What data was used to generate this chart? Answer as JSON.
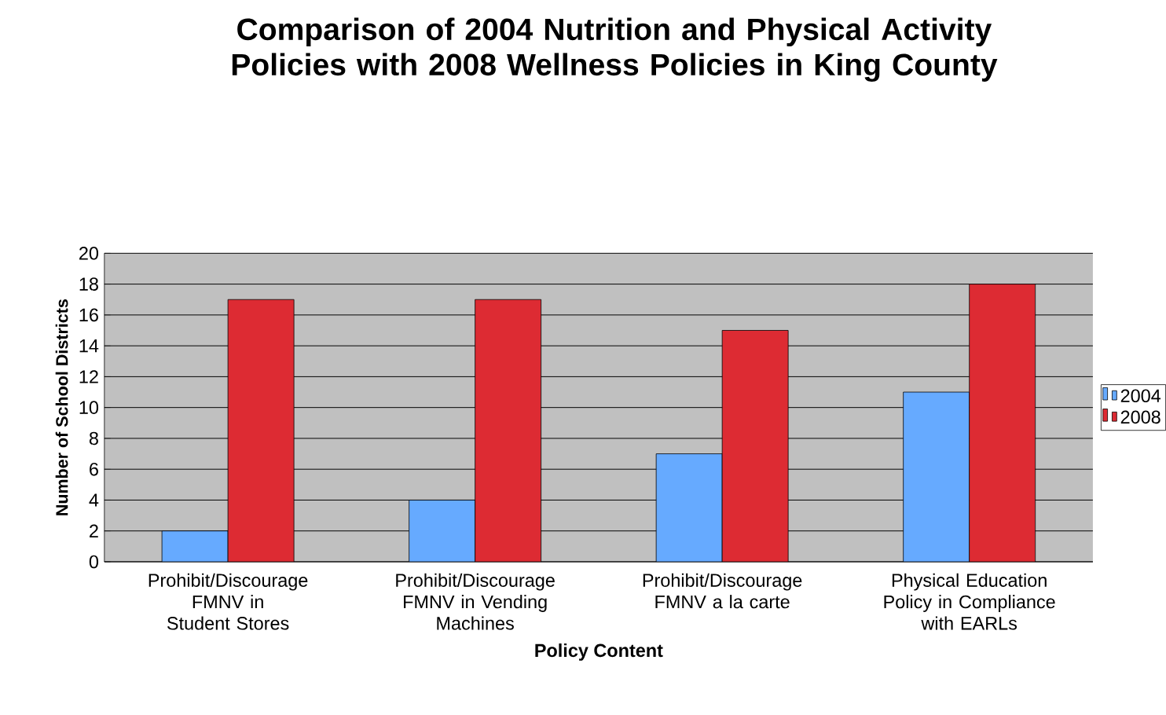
{
  "chart_data": {
    "type": "bar",
    "title": "Comparison of 2004 Nutrition and Physical Activity Policies with 2008 Wellness Policies in King County",
    "xlabel": "Policy Content",
    "ylabel": "Number of School Districts",
    "categories": [
      "Prohibit/Discourage FMNV in Student Stores",
      "Prohibit/Discourage FMNV in Vending Machines",
      "Prohibit/Discourage FMNV a la carte",
      "Physical Education Policy in Compliance with EARLs"
    ],
    "series": [
      {
        "name": "2004",
        "color": "#66aaff",
        "values": [
          2,
          4,
          7,
          11
        ]
      },
      {
        "name": "2008",
        "color": "#dd2b33",
        "values": [
          17,
          17,
          15,
          18
        ]
      }
    ],
    "ylim": [
      0,
      20
    ],
    "yticks": [
      0,
      2,
      4,
      6,
      8,
      10,
      12,
      14,
      16,
      18,
      20
    ],
    "grid": "y",
    "legend": "right"
  }
}
